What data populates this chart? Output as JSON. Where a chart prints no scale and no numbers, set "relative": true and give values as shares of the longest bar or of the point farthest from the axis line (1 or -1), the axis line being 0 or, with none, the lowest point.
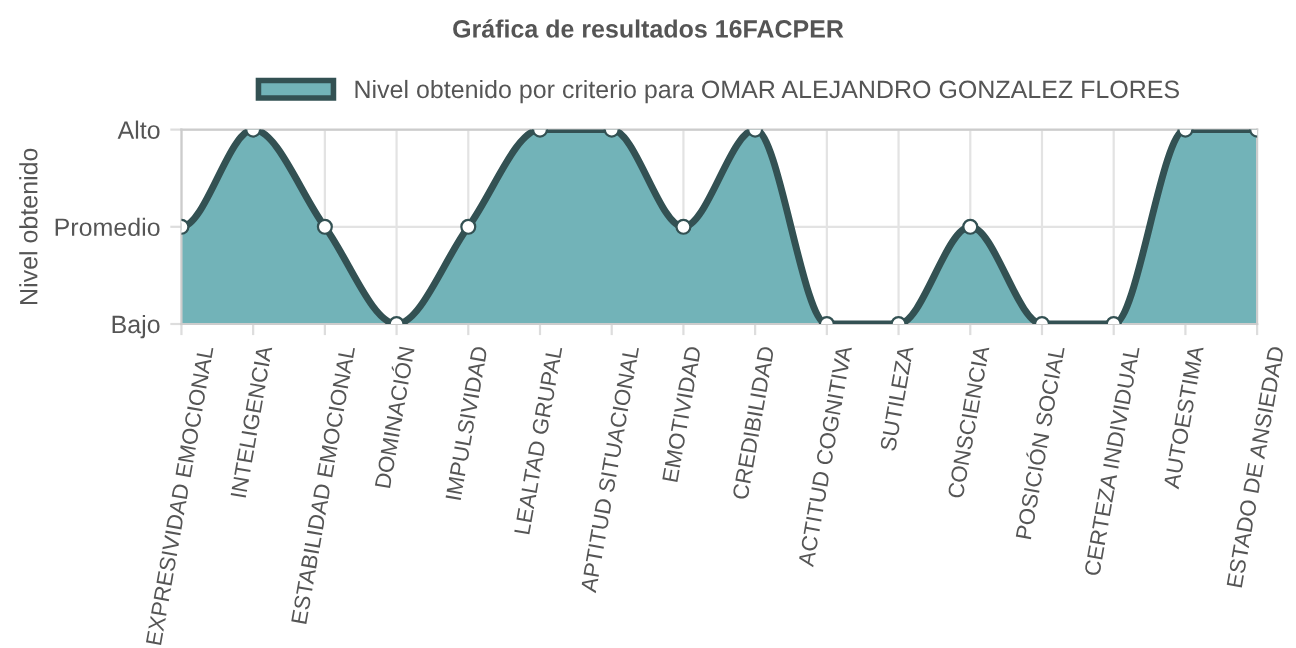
{
  "chart_data": {
    "type": "area",
    "title": "Gráfica de resultados 16FACPER",
    "ylabel": "Nivel obtenido",
    "categories": [
      "EXPRESIVIDAD EMOCIONAL",
      "INTELIGENCIA",
      "ESTABILIDAD EMOCIONAL",
      "DOMINACIÓN",
      "IMPULSIVIDAD",
      "LEALTAD GRUPAL",
      "APTITUD SITUACIONAL",
      "EMOTIVIDAD",
      "CREDIBILIDAD",
      "ACTITUD COGNITIVA",
      "SUTILEZA",
      "CONSCIENCIA",
      "POSICIÓN SOCIAL",
      "CERTEZA INDIVIDUAL",
      "AUTOESTIMA",
      "ESTADO DE ANSIEDAD"
    ],
    "y_categories": [
      "Alto",
      "Promedio",
      "Bajo"
    ],
    "relative": true,
    "series": [
      {
        "name": "Nivel obtenido por criterio para OMAR ALEJANDRO GONZALEZ FLORES",
        "color": "#72b3b8",
        "values": [
          0.5,
          1,
          0.5,
          0,
          0.5,
          1,
          1,
          0.5,
          1,
          0,
          0,
          0.5,
          0,
          0,
          1,
          1
        ]
      }
    ],
    "grid": true,
    "legend": "top",
    "marker": "circle",
    "line_style": "solid"
  }
}
